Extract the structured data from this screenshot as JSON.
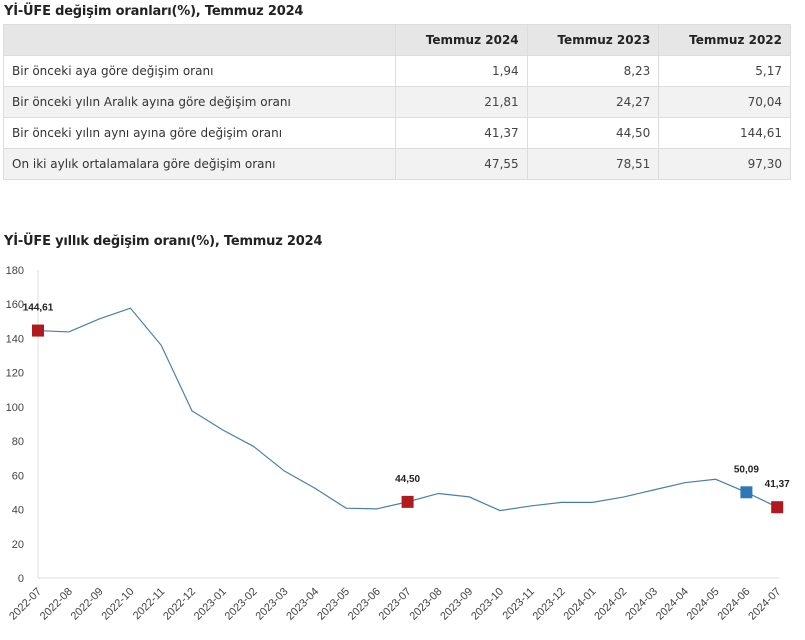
{
  "table_title": "Yİ-ÜFE değişim oranları(%), Temmuz 2024",
  "table": {
    "columns": [
      "",
      "Temmuz 2024",
      "Temmuz 2023",
      "Temmuz 2022"
    ],
    "rows": [
      {
        "label": "Bir önceki aya göre değişim oranı",
        "values": [
          "1,94",
          "8,23",
          "5,17"
        ]
      },
      {
        "label": "Bir önceki yılın Aralık ayına göre değişim oranı",
        "values": [
          "21,81",
          "24,27",
          "70,04"
        ]
      },
      {
        "label": "Bir önceki yılın aynı ayına göre değişim oranı",
        "values": [
          "41,37",
          "44,50",
          "144,61"
        ]
      },
      {
        "label": "On iki aylık ortalamalara göre değişim oranı",
        "values": [
          "47,55",
          "78,51",
          "97,30"
        ]
      }
    ]
  },
  "chart_title": "Yİ-ÜFE yıllık değişim oranı(%), Temmuz 2024",
  "colors": {
    "line": "#4a7fa8",
    "highlight_red": "#b0191e",
    "highlight_blue": "#2e78b8",
    "axis": "#dddddd"
  },
  "chart_data": {
    "type": "line",
    "title": "Yİ-ÜFE yıllık değişim oranı(%), Temmuz 2024",
    "xlabel": "",
    "ylabel": "",
    "ylim": [
      0,
      180
    ],
    "yticks": [
      0,
      20,
      40,
      60,
      80,
      100,
      120,
      140,
      160,
      180
    ],
    "grid": false,
    "legend": null,
    "categories": [
      "2022-07",
      "2022-08",
      "2022-09",
      "2022-10",
      "2022-11",
      "2022-12",
      "2023-01",
      "2023-02",
      "2023-03",
      "2023-04",
      "2023-05",
      "2023-06",
      "2023-07",
      "2023-08",
      "2023-09",
      "2023-10",
      "2023-11",
      "2023-12",
      "2024-01",
      "2024-02",
      "2024-03",
      "2024-04",
      "2024-05",
      "2024-06",
      "2024-07"
    ],
    "series": [
      {
        "name": "Yİ-ÜFE yıllık değişim oranı(%)",
        "values": [
          144.61,
          143.8,
          151.5,
          157.7,
          136.0,
          97.7,
          86.5,
          76.9,
          62.5,
          52.4,
          40.8,
          40.4,
          44.5,
          49.4,
          47.4,
          39.4,
          42.1,
          44.2,
          44.2,
          47.3,
          51.5,
          55.7,
          57.7,
          50.09,
          41.37
        ]
      }
    ],
    "annotations": [
      {
        "category": "2022-07",
        "label": "144,61",
        "marker_color": "#b0191e"
      },
      {
        "category": "2023-07",
        "label": "44,50",
        "marker_color": "#b0191e"
      },
      {
        "category": "2024-06",
        "label": "50,09",
        "marker_color": "#2e78b8"
      },
      {
        "category": "2024-07",
        "label": "41,37",
        "marker_color": "#b0191e"
      }
    ]
  }
}
